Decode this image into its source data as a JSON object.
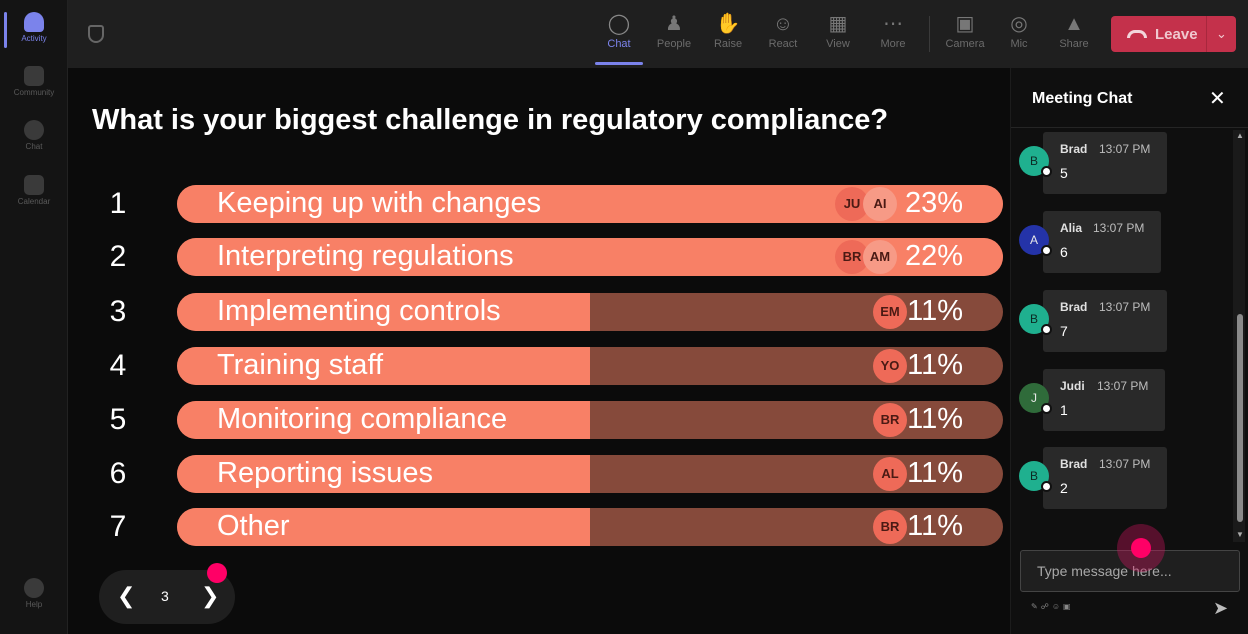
{
  "rail": {
    "items": [
      {
        "label": "Activity",
        "active": true,
        "icon": "bell-icon"
      },
      {
        "label": "Community",
        "active": false,
        "icon": "community-icon"
      },
      {
        "label": "Chat",
        "active": false,
        "icon": "chat-icon"
      },
      {
        "label": "Calendar",
        "active": false,
        "icon": "calendar-icon"
      }
    ],
    "help_label": "Help"
  },
  "toolbar": {
    "chat": "Chat",
    "people": "People",
    "raise": "Raise",
    "react": "React",
    "view": "View",
    "more": "More",
    "camera": "Camera",
    "mic": "Mic",
    "share": "Share",
    "leave": "Leave"
  },
  "poll": {
    "question": "What is your biggest challenge in regulatory compliance?",
    "options": [
      {
        "num": "1",
        "label": "Keeping up with changes",
        "percent": "23%",
        "value": 23,
        "avatars": [
          "JU",
          "AI"
        ]
      },
      {
        "num": "2",
        "label": "Interpreting regulations",
        "percent": "22%",
        "value": 22,
        "avatars": [
          "BR",
          "AM"
        ]
      },
      {
        "num": "3",
        "label": "Implementing controls",
        "percent": "11%",
        "value": 11,
        "avatars": [
          "EM"
        ]
      },
      {
        "num": "4",
        "label": "Training staff",
        "percent": "11%",
        "value": 11,
        "avatars": [
          "YO"
        ]
      },
      {
        "num": "5",
        "label": "Monitoring compliance",
        "percent": "11%",
        "value": 11,
        "avatars": [
          "BR"
        ]
      },
      {
        "num": "6",
        "label": "Reporting issues",
        "percent": "11%",
        "value": 11,
        "avatars": [
          "AL"
        ]
      },
      {
        "num": "7",
        "label": "Other",
        "percent": "11%",
        "value": 11,
        "avatars": [
          "BR"
        ]
      }
    ]
  },
  "pager": {
    "page": "3"
  },
  "chat": {
    "title": "Meeting Chat",
    "messages": [
      {
        "initial": "B",
        "name": "Brad",
        "time": "13:07 PM",
        "text": "5",
        "color": "#1fb08f"
      },
      {
        "initial": "A",
        "name": "Alia",
        "time": "13:07 PM",
        "text": "6",
        "color": "#2433a8"
      },
      {
        "initial": "B",
        "name": "Brad",
        "time": "13:07 PM",
        "text": "7",
        "color": "#1fb08f"
      },
      {
        "initial": "J",
        "name": "Judi",
        "time": "13:07 PM",
        "text": "1",
        "color": "#2f6b3a"
      },
      {
        "initial": "B",
        "name": "Brad",
        "time": "13:07 PM",
        "text": "2",
        "color": "#1fb08f"
      }
    ],
    "input_placeholder": "Type message here..."
  },
  "colors": {
    "accent": "#7b83eb",
    "bar_fill": "#f88066",
    "bar_track": "#864a3b",
    "leave": "#c4314b",
    "cursor_dot": "#ff0066"
  }
}
